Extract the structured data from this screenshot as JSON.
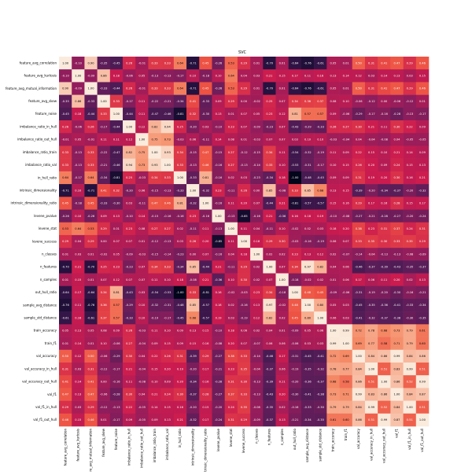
{
  "chart_data": {
    "type": "heatmap",
    "title": "SVC",
    "xlabel": "",
    "ylabel": "",
    "labels": [
      "feature_avg_correlation",
      "feature_avg_kurtosis",
      "feature_avg_mutual_information",
      "feature_avg_skew",
      "feature_noise",
      "imbalance_ratio_in_hull",
      "imbalance_ratio_out_hull",
      "imbalance_ratio_train",
      "imbalance_ratio_val",
      "in_hull_ratio",
      "intrinsic_dimensionality",
      "intrinsic_dimensionality_ratio",
      "levene_pvalue",
      "levene_stat",
      "levene_success",
      "n_classes",
      "n_features",
      "n_samples",
      "out_hull_ratio",
      "sample_avg_distance",
      "sample_std_distance",
      "train_accuracy",
      "train_f1",
      "val_accuracy",
      "val_accuracy_in_hull",
      "val_accuracy_out_hull",
      "val_f1",
      "val_f1_in_hull",
      "val_f1_out_hull"
    ],
    "x_tick_labels": [
      "feature_avg_correlation",
      "feature_avg_kurtosis",
      "feature_avg_mutual_information",
      "feature_avg_skew",
      "feature_noise",
      "imbalance_ratio_in_hull",
      "imbalance_ratio_out_hull",
      "imbalance_ratio_train",
      "imbalance_ratio_val",
      "in_hull_ratio",
      "intrinsic_dimensionality",
      "intrinsic_dimensionality_ratio",
      "levene_pvalue",
      "levene_stat",
      "levene_success",
      "n_classes",
      "n_features",
      "n_samples",
      "out_hull_ratio",
      "sample_avg_distance",
      "sample_std_distance",
      "train_accuracy",
      "train_f1",
      "val_accuracy",
      "val_accuracy_in_hull",
      "val_accuracy_out_hull",
      "val_f1",
      "val_f1_in_hull",
      "val_f1_out_hull"
    ],
    "vmin": -1,
    "vmax": 1,
    "colormap": "rocket",
    "values": [
      [
        1.0,
        -0.1,
        0.9,
        -0.35,
        -0.45,
        0.26,
        -0.01,
        0.33,
        0.33,
        0.64,
        -0.71,
        0.45,
        -0.26,
        0.53,
        0.29,
        0.01,
        -0.7,
        0.01,
        -0.64,
        -0.76,
        -0.61,
        0.05,
        0.01,
        0.5,
        0.31,
        0.41,
        0.47,
        0.29,
        0.46
      ],
      [
        -0.1,
        1.0,
        -0.09,
        0.86,
        0.18,
        -0.06,
        0.05,
        -0.13,
        -0.13,
        -0.17,
        0.1,
        -0.18,
        0.1,
        0.64,
        0.04,
        0.03,
        0.21,
        0.15,
        0.17,
        0.11,
        0.16,
        0.13,
        0.14,
        0.12,
        0.03,
        0.14,
        0.13,
        0.03,
        0.15
      ],
      [
        0.9,
        -0.09,
        1.0,
        -0.33,
        -0.44,
        0.26,
        -0.01,
        0.33,
        0.33,
        0.64,
        -0.71,
        0.45,
        -0.26,
        0.53,
        0.29,
        0.01,
        -0.7,
        0.01,
        -0.64,
        -0.76,
        -0.61,
        0.05,
        0.01,
        0.5,
        0.31,
        0.41,
        0.47,
        0.29,
        0.46
      ],
      [
        -0.35,
        0.86,
        -0.33,
        1.0,
        0.33,
        -0.17,
        0.11,
        -0.22,
        -0.21,
        -0.34,
        0.41,
        -0.33,
        0.09,
        0.29,
        0.0,
        -0.02,
        0.25,
        0.07,
        0.34,
        0.36,
        0.37,
        0.08,
        0.1,
        -0.06,
        -0.12,
        -0.0,
        -0.06,
        -0.12,
        0.01
      ],
      [
        -0.45,
        0.18,
        -0.44,
        0.33,
        1.0,
        -0.44,
        0.11,
        -0.47,
        -0.46,
        -0.81,
        0.32,
        -0.3,
        0.13,
        0.01,
        0.07,
        0.05,
        0.23,
        0.12,
        0.81,
        0.57,
        0.57,
        0.09,
        -0.06,
        -0.29,
        -0.17,
        -0.16,
        -0.28,
        -0.13,
        -0.17
      ],
      [
        0.26,
        -0.06,
        0.26,
        -0.17,
        -0.44,
        1.0,
        0.12,
        0.82,
        0.94,
        0.25,
        -0.2,
        0.03,
        -0.1,
        0.23,
        0.07,
        -0.09,
        -0.23,
        0.07,
        -0.43,
        -0.29,
        -0.33,
        0.26,
        0.27,
        0.3,
        0.21,
        0.11,
        0.3,
        0.22,
        0.09
      ],
      [
        -0.01,
        0.05,
        -0.01,
        0.11,
        0.11,
        0.12,
        1.0,
        0.75,
        0.73,
        -0.03,
        0.06,
        -0.11,
        0.14,
        0.08,
        0.01,
        -0.03,
        0.07,
        0.07,
        0.03,
        0.1,
        0.1,
        -0.03,
        -0.04,
        0.04,
        -0.04,
        -0.08,
        0.04,
        -0.05,
        -0.05
      ],
      [
        0.33,
        -0.13,
        0.33,
        -0.22,
        -0.47,
        0.82,
        0.75,
        1.0,
        0.93,
        0.34,
        -0.15,
        0.47,
        -0.15,
        0.27,
        -0.12,
        -0.15,
        0.34,
        0.11,
        -0.54,
        -0.32,
        -0.19,
        0.11,
        0.09,
        0.22,
        0.15,
        0.1,
        0.21,
        0.14,
        0.09
      ],
      [
        0.33,
        -0.13,
        0.33,
        -0.21,
        -0.46,
        0.94,
        0.73,
        0.93,
        1.0,
        0.33,
        -0.13,
        0.46,
        -0.16,
        0.27,
        -0.13,
        -0.14,
        0.33,
        0.1,
        -0.53,
        -0.31,
        -0.17,
        0.1,
        0.15,
        0.26,
        0.2,
        0.09,
        0.24,
        0.15,
        0.13
      ],
      [
        0.64,
        -0.17,
        0.64,
        -0.34,
        -0.81,
        0.25,
        -0.03,
        0.34,
        0.33,
        1.0,
        -0.33,
        0.81,
        -0.16,
        0.02,
        0.03,
        -0.23,
        -0.34,
        0.18,
        -1.0,
        -0.48,
        -0.45,
        0.09,
        0.09,
        0.31,
        0.19,
        0.2,
        0.3,
        0.16,
        0.21
      ],
      [
        -0.71,
        0.1,
        -0.71,
        0.41,
        0.32,
        -0.2,
        0.06,
        -0.15,
        -0.13,
        -0.33,
        1.0,
        -0.32,
        0.23,
        -0.11,
        0.26,
        0.0,
        0.85,
        -0.08,
        0.33,
        0.85,
        0.68,
        0.13,
        0.15,
        -0.39,
        -0.2,
        -0.34,
        -0.37,
        -0.2,
        -0.32
      ],
      [
        0.45,
        -0.18,
        0.45,
        -0.33,
        -0.3,
        0.03,
        -0.11,
        0.47,
        0.46,
        0.81,
        -0.32,
        1.0,
        -0.16,
        0.11,
        0.2,
        0.07,
        -0.44,
        0.21,
        -0.81,
        -0.57,
        -0.57,
        0.15,
        0.16,
        0.29,
        0.17,
        0.16,
        0.28,
        0.15,
        0.17
      ],
      [
        -0.26,
        0.1,
        -0.26,
        0.09,
        0.13,
        -0.1,
        0.14,
        -0.15,
        -0.16,
        -0.16,
        0.23,
        -0.16,
        1.0,
        -0.13,
        -0.85,
        -0.16,
        0.21,
        -0.36,
        0.16,
        0.18,
        0.19,
        -0.1,
        -0.08,
        -0.27,
        -0.21,
        -0.28,
        -0.27,
        -0.2,
        -0.24
      ],
      [
        0.53,
        0.64,
        0.53,
        0.29,
        0.01,
        0.23,
        0.08,
        0.27,
        0.27,
        0.02,
        -0.11,
        0.11,
        -0.13,
        1.0,
        0.11,
        0.04,
        -0.11,
        0.1,
        -0.02,
        0.02,
        0.03,
        0.18,
        0.2,
        0.38,
        0.23,
        0.31,
        0.37,
        0.24,
        0.31
      ],
      [
        0.29,
        0.04,
        0.29,
        0.0,
        0.07,
        0.07,
        0.01,
        -0.12,
        -0.13,
        0.03,
        0.26,
        0.2,
        -0.85,
        0.11,
        1.0,
        0.18,
        0.29,
        0.3,
        -0.03,
        -0.16,
        -0.19,
        0.06,
        0.07,
        0.33,
        0.35,
        0.3,
        0.33,
        0.35,
        0.29
      ],
      [
        0.01,
        0.03,
        0.01,
        -0.02,
        0.05,
        -0.09,
        -0.03,
        -0.15,
        -0.14,
        -0.23,
        0.0,
        0.07,
        -0.16,
        0.04,
        0.18,
        1.0,
        0.02,
        0.02,
        0.23,
        0.13,
        0.12,
        0.02,
        -0.07,
        -0.14,
        -0.04,
        -0.13,
        -0.13,
        -0.08,
        -0.09
      ],
      [
        -0.7,
        0.21,
        -0.7,
        0.25,
        0.23,
        -0.23,
        0.07,
        0.34,
        0.33,
        -0.34,
        0.85,
        -0.44,
        0.21,
        -0.11,
        0.29,
        0.02,
        1.0,
        0.07,
        0.34,
        0.97,
        0.82,
        0.04,
        0.06,
        -0.46,
        -0.37,
        -0.39,
        -0.43,
        -0.35,
        -0.37
      ],
      [
        0.01,
        0.15,
        0.01,
        0.07,
        0.12,
        0.07,
        0.07,
        0.11,
        0.1,
        0.18,
        -0.08,
        0.21,
        -0.36,
        0.1,
        0.3,
        0.02,
        0.07,
        1.0,
        -0.18,
        -0.02,
        0.02,
        0.01,
        0.06,
        0.17,
        0.06,
        0.11,
        0.2,
        0.02,
        0.13
      ],
      [
        -0.64,
        0.17,
        -0.64,
        0.34,
        0.81,
        -0.43,
        0.03,
        -0.54,
        -0.53,
        -1.0,
        0.33,
        -0.81,
        0.16,
        -0.02,
        -0.03,
        0.23,
        0.34,
        -0.18,
        1.0,
        0.48,
        0.45,
        -0.09,
        -0.06,
        -0.31,
        -0.19,
        -0.2,
        -0.3,
        -0.16,
        -0.21
      ],
      [
        -0.76,
        0.11,
        -0.76,
        0.36,
        0.57,
        -0.29,
        0.1,
        -0.32,
        -0.31,
        -0.48,
        0.85,
        -0.57,
        0.18,
        0.02,
        -0.16,
        0.13,
        0.97,
        -0.02,
        0.48,
        1.0,
        0.8,
        0.05,
        0.03,
        -0.45,
        -0.35,
        -0.36,
        -0.41,
        -0.33,
        -0.34
      ],
      [
        -0.61,
        0.16,
        -0.61,
        0.37,
        0.57,
        -0.33,
        0.1,
        -0.19,
        -0.17,
        -0.45,
        0.68,
        -0.57,
        0.19,
        0.03,
        -0.19,
        0.12,
        0.82,
        0.02,
        0.45,
        0.8,
        1.0,
        0.06,
        0.03,
        -0.41,
        -0.32,
        -0.37,
        -0.38,
        -0.3,
        -0.35
      ],
      [
        0.05,
        0.13,
        0.05,
        0.08,
        0.09,
        0.26,
        -0.03,
        0.11,
        0.1,
        0.09,
        0.13,
        0.15,
        -0.1,
        0.18,
        0.06,
        0.02,
        0.04,
        0.01,
        -0.09,
        0.05,
        0.06,
        1.0,
        0.99,
        0.72,
        0.78,
        0.68,
        0.73,
        0.79,
        0.61
      ],
      [
        0.01,
        0.14,
        0.01,
        0.1,
        -0.06,
        0.27,
        -0.04,
        0.09,
        0.15,
        0.09,
        0.15,
        0.16,
        -0.08,
        0.2,
        0.07,
        -0.07,
        0.06,
        0.06,
        -0.06,
        0.03,
        0.03,
        0.99,
        1.0,
        0.69,
        0.77,
        0.58,
        0.71,
        0.79,
        0.6
      ],
      [
        0.5,
        0.12,
        0.5,
        -0.06,
        -0.29,
        0.3,
        0.04,
        0.22,
        0.26,
        0.31,
        -0.39,
        0.29,
        -0.27,
        0.38,
        0.33,
        -0.14,
        -0.46,
        0.17,
        -0.31,
        -0.45,
        -0.41,
        0.72,
        0.69,
        1.0,
        0.84,
        0.86,
        0.99,
        0.84,
        0.86
      ],
      [
        0.31,
        0.03,
        0.31,
        -0.12,
        -0.17,
        0.21,
        -0.04,
        0.15,
        0.2,
        0.19,
        -0.2,
        0.17,
        -0.21,
        0.23,
        0.35,
        -0.04,
        -0.37,
        0.06,
        -0.19,
        -0.35,
        -0.32,
        0.78,
        0.77,
        0.84,
        1.0,
        0.51,
        0.83,
        0.99,
        0.51
      ],
      [
        0.41,
        0.14,
        0.41,
        -0.0,
        -0.16,
        0.11,
        -0.08,
        0.1,
        0.09,
        0.2,
        -0.34,
        0.16,
        -0.28,
        0.31,
        0.3,
        -0.13,
        -0.39,
        0.11,
        -0.2,
        -0.36,
        -0.37,
        0.68,
        0.58,
        0.86,
        0.51,
        1.0,
        0.86,
        0.52,
        0.99
      ],
      [
        0.47,
        0.13,
        0.47,
        -0.06,
        -0.28,
        0.3,
        0.04,
        0.21,
        0.24,
        0.3,
        -0.37,
        0.28,
        -0.27,
        0.37,
        0.33,
        -0.13,
        -0.43,
        0.2,
        -0.3,
        -0.41,
        -0.38,
        0.73,
        0.71,
        0.99,
        0.83,
        0.86,
        1.0,
        0.84,
        0.87
      ],
      [
        0.29,
        0.03,
        0.29,
        -0.12,
        -0.13,
        0.22,
        -0.05,
        0.14,
        0.15,
        0.16,
        -0.2,
        0.15,
        -0.2,
        0.24,
        0.35,
        -0.08,
        -0.35,
        0.02,
        -0.16,
        -0.33,
        -0.3,
        0.79,
        0.79,
        0.84,
        0.99,
        0.52,
        0.84,
        1.0,
        0.51
      ],
      [
        0.46,
        0.15,
        0.46,
        0.01,
        -0.17,
        0.09,
        -0.05,
        0.09,
        0.13,
        0.21,
        -0.32,
        0.17,
        -0.24,
        0.31,
        0.29,
        -0.09,
        -0.37,
        0.13,
        -0.21,
        -0.34,
        -0.35,
        0.61,
        0.6,
        0.86,
        0.51,
        0.99,
        0.87,
        0.51,
        1.0
      ]
    ]
  }
}
